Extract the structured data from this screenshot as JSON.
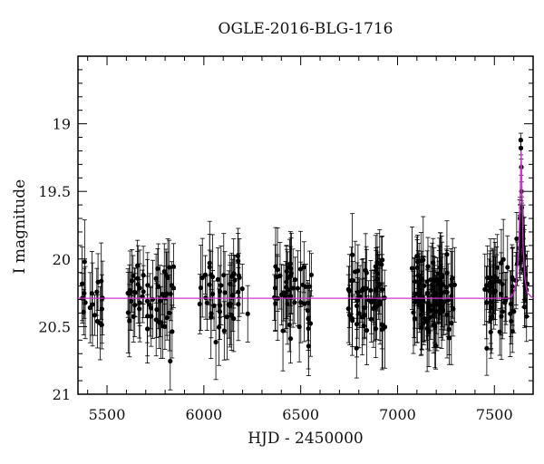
{
  "chart_data": {
    "type": "scatter",
    "title": "OGLE-2016-BLG-1716",
    "xlabel": "HJD - 2450000",
    "ylabel": "I magnitude",
    "xlim": [
      5350,
      7700
    ],
    "ylim": [
      18.5,
      21.0
    ],
    "y_inverted": true,
    "x_ticks": [
      5500,
      6000,
      6500,
      7000,
      7500
    ],
    "x_tick_labels": [
      "5500",
      "6000",
      "6500",
      "7000",
      "7500"
    ],
    "y_ticks": [
      19.0,
      19.5,
      20.0,
      20.5,
      21.0
    ],
    "y_tick_labels": [
      "19",
      "19.5",
      "20",
      "20.5",
      "21"
    ],
    "baseline_mag": 20.29,
    "model_color": "#cc33cc",
    "point_color": "#000000",
    "seasons": [
      {
        "start": 5370,
        "end": 5480,
        "n": 18
      },
      {
        "start": 5600,
        "end": 5850,
        "n": 55
      },
      {
        "start": 5975,
        "end": 6230,
        "n": 45
      },
      {
        "start": 6360,
        "end": 6560,
        "n": 45
      },
      {
        "start": 6735,
        "end": 6935,
        "n": 60
      },
      {
        "start": 7070,
        "end": 7300,
        "n": 95
      },
      {
        "start": 7450,
        "end": 7670,
        "n": 70
      }
    ],
    "model": [
      {
        "x": 5350,
        "y": 20.29
      },
      {
        "x": 7575,
        "y": 20.29
      },
      {
        "x": 7600,
        "y": 20.26
      },
      {
        "x": 7615,
        "y": 20.15
      },
      {
        "x": 7625,
        "y": 19.95
      },
      {
        "x": 7633,
        "y": 19.55
      },
      {
        "x": 7638,
        "y": 19.2
      },
      {
        "x": 7642,
        "y": 19.45
      },
      {
        "x": 7648,
        "y": 19.9
      },
      {
        "x": 7658,
        "y": 20.15
      },
      {
        "x": 7670,
        "y": 20.25
      },
      {
        "x": 7700,
        "y": 20.29
      }
    ],
    "peak_points": [
      {
        "x": 7636,
        "y": 19.12,
        "err": 0.05
      },
      {
        "x": 7637,
        "y": 19.18,
        "err": 0.05
      },
      {
        "x": 7639,
        "y": 19.32,
        "err": 0.06
      },
      {
        "x": 7640,
        "y": 19.5,
        "err": 0.07
      },
      {
        "x": 7641,
        "y": 19.62,
        "err": 0.08
      },
      {
        "x": 7643,
        "y": 19.78,
        "err": 0.1
      },
      {
        "x": 7645,
        "y": 19.9,
        "err": 0.12
      },
      {
        "x": 7632,
        "y": 19.7,
        "err": 0.1
      },
      {
        "x": 7628,
        "y": 19.92,
        "err": 0.12
      }
    ]
  }
}
